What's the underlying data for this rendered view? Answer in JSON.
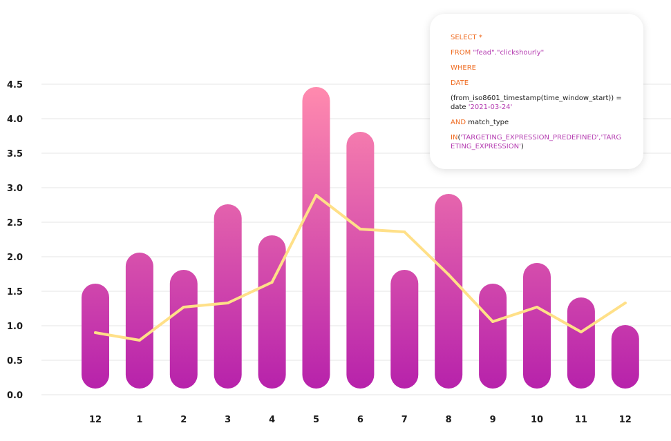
{
  "chart_data": {
    "type": "bar",
    "categories": [
      "12",
      "1",
      "2",
      "3",
      "4",
      "5",
      "6",
      "7",
      "8",
      "9",
      "10",
      "11",
      "12"
    ],
    "series": [
      {
        "values": [
          1.5,
          1.95,
          1.7,
          2.65,
          2.2,
          4.35,
          3.7,
          1.7,
          2.8,
          1.5,
          1.8,
          1.3,
          0.9
        ]
      },
      {
        "type": "line",
        "values": [
          0.9,
          0.79,
          1.27,
          1.33,
          1.63,
          2.89,
          2.4,
          2.36,
          1.74,
          1.06,
          1.27,
          0.91,
          1.33
        ]
      }
    ],
    "yticks": [
      "0.0",
      "0.5",
      "1.0",
      "1.5",
      "2.0",
      "2.5",
      "3.0",
      "3.5",
      "4.0",
      "4.5"
    ],
    "ylim": [
      0,
      4.5
    ],
    "grid": true,
    "colors": {
      "bar_top": "#ff8aae",
      "bar_bottom": "#b722ab",
      "line": "#ffe088",
      "grid": "#e6e6e6"
    }
  },
  "code_card": {
    "lines": [
      [
        {
          "t": "SELECT *",
          "c": "kw"
        }
      ],
      [
        {
          "t": "FROM ",
          "c": "kw"
        },
        {
          "t": "\"fead\".\"clickshourly\"",
          "c": "str"
        }
      ],
      [
        {
          "t": "WHERE",
          "c": "kw"
        }
      ],
      [
        {
          "t": "DATE",
          "c": "kw"
        }
      ],
      [
        {
          "t": "(from_iso8601_timestamp(time_window_start)) = date ",
          "c": "plain"
        },
        {
          "t": "'2021-03-24'",
          "c": "str"
        }
      ],
      [
        {
          "t": "AND ",
          "c": "kw"
        },
        {
          "t": "match_type",
          "c": "plain"
        }
      ],
      [
        {
          "t": "IN",
          "c": "kw"
        },
        {
          "t": "(",
          "c": "plain"
        },
        {
          "t": "'TARGETING_EXPRESSION_PREDEFINED','TARGETING_EXPRESSION'",
          "c": "str"
        },
        {
          "t": ")",
          "c": "plain"
        }
      ]
    ]
  }
}
